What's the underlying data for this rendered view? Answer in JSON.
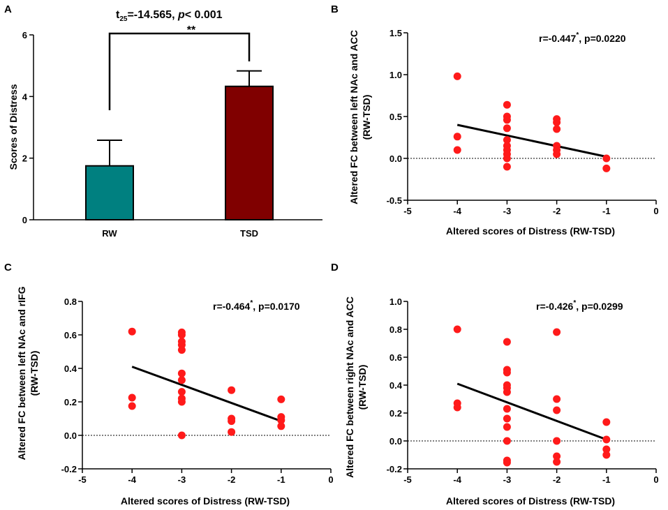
{
  "chart_data": [
    {
      "panel": "A",
      "type": "bar",
      "ylabel": "Scores of Distress",
      "ylim": [
        0,
        6
      ],
      "yticks": [
        "0",
        "2",
        "4",
        "6"
      ],
      "categories": [
        "RW",
        "TSD"
      ],
      "values": [
        1.75,
        4.33
      ],
      "errors": [
        0.83,
        0.5
      ],
      "bar_colors": [
        "#008080",
        "#800000"
      ],
      "significance": "**",
      "stat_prefix": "t",
      "stat_sub": "25",
      "stat_value": "=-14.565, ",
      "p_label": "p",
      "p_text": "< 0.001"
    },
    {
      "panel": "B",
      "type": "scatter",
      "xlabel": "Altered scores of Distress  (RW-TSD)",
      "ylabel_line1": "Altered FC between left NAc and ACC",
      "ylabel_line2": "(RW-TSD)",
      "xlim": [
        -5,
        0
      ],
      "ylim": [
        -0.5,
        1.5
      ],
      "xticks": [
        "-5",
        "-4",
        "-3",
        "-2",
        "-1",
        "0"
      ],
      "yticks": [
        "-0.5",
        "0.0",
        "0.5",
        "1.0",
        "1.5"
      ],
      "annotation_r": "r=-0.447",
      "annotation_sup": "*",
      "annotation_p": ", p=0.0220",
      "points": [
        [
          -4,
          0.98
        ],
        [
          -4,
          0.26
        ],
        [
          -4,
          0.1
        ],
        [
          -3,
          0.64
        ],
        [
          -3,
          0.5
        ],
        [
          -3,
          0.46
        ],
        [
          -3,
          0.36
        ],
        [
          -3,
          0.22
        ],
        [
          -3,
          0.15
        ],
        [
          -3,
          0.1
        ],
        [
          -3,
          0.05
        ],
        [
          -3,
          0.0
        ],
        [
          -3,
          -0.1
        ],
        [
          -2,
          0.47
        ],
        [
          -2,
          0.43
        ],
        [
          -2,
          0.35
        ],
        [
          -2,
          0.15
        ],
        [
          -2,
          0.1
        ],
        [
          -2,
          0.05
        ],
        [
          -1,
          0.0
        ],
        [
          -1,
          -0.12
        ]
      ],
      "fit": [
        [
          -4,
          0.4
        ],
        [
          -1,
          0.02
        ]
      ]
    },
    {
      "panel": "C",
      "type": "scatter",
      "xlabel": "Altered scores of Distress  (RW-TSD)",
      "ylabel_line1": "Altered FC between left NAc and rIFG",
      "ylabel_line2": "(RW-TSD)",
      "xlim": [
        -5,
        0
      ],
      "ylim": [
        -0.2,
        0.8
      ],
      "xticks": [
        "-5",
        "-4",
        "-3",
        "-2",
        "-1",
        "0"
      ],
      "yticks": [
        "-0.2",
        "0.0",
        "0.2",
        "0.4",
        "0.6",
        "0.8"
      ],
      "annotation_r": "r=-0.464",
      "annotation_sup": "*",
      "annotation_p": ", p=0.0170",
      "points": [
        [
          -4,
          0.62
        ],
        [
          -4,
          0.225
        ],
        [
          -4,
          0.175
        ],
        [
          -3,
          0.615
        ],
        [
          -3,
          0.6
        ],
        [
          -3,
          0.56
        ],
        [
          -3,
          0.54
        ],
        [
          -3,
          0.51
        ],
        [
          -3,
          0.37
        ],
        [
          -3,
          0.33
        ],
        [
          -3,
          0.26
        ],
        [
          -3,
          0.22
        ],
        [
          -3,
          0.2
        ],
        [
          -3,
          0.0
        ],
        [
          -2,
          0.27
        ],
        [
          -2,
          0.1
        ],
        [
          -2,
          0.085
        ],
        [
          -2,
          0.02
        ],
        [
          -1,
          0.215
        ],
        [
          -1,
          0.11
        ],
        [
          -1,
          0.09
        ],
        [
          -1,
          0.055
        ]
      ],
      "fit": [
        [
          -4,
          0.41
        ],
        [
          -1,
          0.085
        ]
      ]
    },
    {
      "panel": "D",
      "type": "scatter",
      "xlabel": "Altered scores of Distress  (RW-TSD)",
      "ylabel_line1": "Altered FC between right NAc and ACC",
      "ylabel_line2": "(RW-TSD)",
      "xlim": [
        -5,
        0
      ],
      "ylim": [
        -0.2,
        1.0
      ],
      "xticks": [
        "-5",
        "-4",
        "-3",
        "-2",
        "-1",
        "0"
      ],
      "yticks": [
        "-0.2",
        "0.0",
        "0.2",
        "0.4",
        "0.6",
        "0.8",
        "1.0"
      ],
      "annotation_r": "r=-0.426",
      "annotation_sup": "*",
      "annotation_p": ", p=0.0299",
      "points": [
        [
          -4,
          0.8
        ],
        [
          -4,
          0.27
        ],
        [
          -4,
          0.24
        ],
        [
          -3,
          0.71
        ],
        [
          -3,
          0.51
        ],
        [
          -3,
          0.49
        ],
        [
          -3,
          0.4
        ],
        [
          -3,
          0.38
        ],
        [
          -3,
          0.35
        ],
        [
          -3,
          0.23
        ],
        [
          -3,
          0.16
        ],
        [
          -3,
          0.1
        ],
        [
          -3,
          0.0
        ],
        [
          -3,
          -0.14
        ],
        [
          -3,
          -0.155
        ],
        [
          -2,
          0.78
        ],
        [
          -2,
          0.3
        ],
        [
          -2,
          0.22
        ],
        [
          -2,
          0.0
        ],
        [
          -2,
          -0.11
        ],
        [
          -2,
          -0.15
        ],
        [
          -1,
          0.135
        ],
        [
          -1,
          0.01
        ],
        [
          -1,
          -0.06
        ],
        [
          -1,
          -0.1
        ]
      ],
      "fit": [
        [
          -4,
          0.41
        ],
        [
          -1,
          0.01
        ]
      ]
    }
  ]
}
